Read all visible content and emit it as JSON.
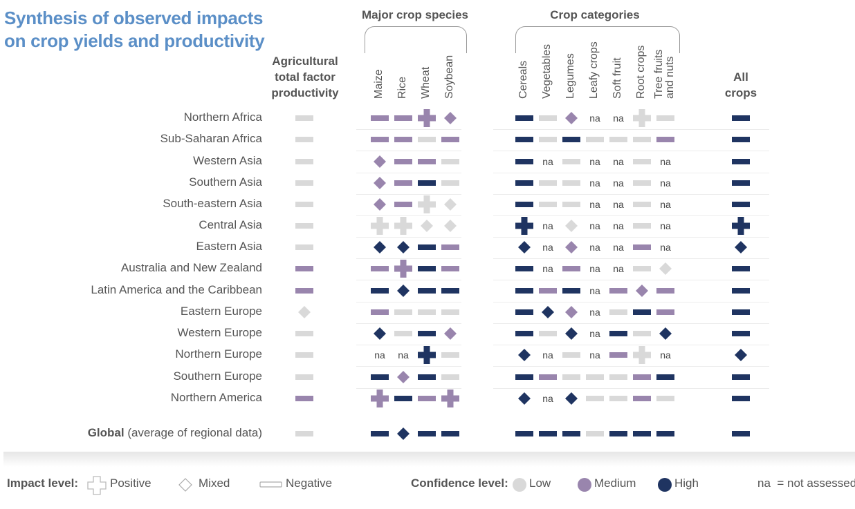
{
  "title_line1": "Synthesis of observed impacts",
  "title_line2": "on crop yields and productivity",
  "group_major": "Major crop species",
  "group_categories": "Crop categories",
  "col_agri": [
    "Agricultural",
    "total factor",
    "productivity"
  ],
  "col_all": [
    "All",
    "crops"
  ],
  "columns_major": [
    "Maize",
    "Rice",
    "Wheat",
    "Soybean"
  ],
  "columns_categories": [
    "Cereals",
    "Vegetables",
    "Legumes",
    "Leafy crops",
    "Soft fruit",
    "Root crops",
    "Tree fruits\nand nuts"
  ],
  "global_label_bold": "Global",
  "global_label_rest": "(average of regional data)",
  "legend": {
    "impact_label": "Impact level:",
    "positive": "Positive",
    "mixed": "Mixed",
    "negative": "Negative",
    "confidence_label": "Confidence level:",
    "low": "Low",
    "medium": "Medium",
    "high": "High",
    "na_key": "na",
    "na_text": "= not assessed"
  },
  "colors": {
    "low": "#d9d9d9",
    "medium": "#9985ad",
    "high": "#1f3461"
  },
  "chart_data": {
    "type": "table",
    "encoding": "symbol = impact (P positive, M mixed, N negative); color = confidence (L low, M medium, H high); na = not assessed",
    "columns": [
      "Agricultural total factor productivity",
      "Maize",
      "Rice",
      "Wheat",
      "Soybean",
      "Cereals",
      "Vegetables",
      "Legumes",
      "Leafy crops",
      "Soft fruit",
      "Root crops",
      "Tree fruits and nuts",
      "All crops"
    ],
    "rows": [
      {
        "region": "Northern Africa",
        "cells": [
          "NL",
          "NM",
          "NM",
          "PM",
          "MM",
          "NH",
          "NL",
          "MM",
          "na",
          "na",
          "PL",
          "NL",
          "NH"
        ]
      },
      {
        "region": "Sub-Saharan Africa",
        "cells": [
          "NL",
          "NM",
          "NM",
          "NL",
          "NM",
          "NH",
          "NL",
          "NH",
          "NL",
          "NL",
          "NL",
          "NM",
          "NH"
        ]
      },
      {
        "region": "Western Asia",
        "cells": [
          "NL",
          "MM",
          "NM",
          "NM",
          "NL",
          "NH",
          "na",
          "NL",
          "na",
          "na",
          "NL",
          "na",
          "NH"
        ]
      },
      {
        "region": "Southern Asia",
        "cells": [
          "NL",
          "MM",
          "NM",
          "NH",
          "NL",
          "NH",
          "NL",
          "NL",
          "na",
          "na",
          "NL",
          "na",
          "NH"
        ]
      },
      {
        "region": "South-eastern Asia",
        "cells": [
          "NL",
          "MM",
          "NM",
          "PL",
          "ML",
          "NH",
          "NL",
          "NL",
          "na",
          "na",
          "NL",
          "na",
          "NH"
        ]
      },
      {
        "region": "Central Asia",
        "cells": [
          "NL",
          "PL",
          "PL",
          "ML",
          "ML",
          "PH",
          "na",
          "ML",
          "na",
          "na",
          "NL",
          "na",
          "PH"
        ]
      },
      {
        "region": "Eastern Asia",
        "cells": [
          "NL",
          "MH",
          "MH",
          "NH",
          "NM",
          "MH",
          "na",
          "MM",
          "na",
          "na",
          "NM",
          "na",
          "MH"
        ]
      },
      {
        "region": "Australia and New Zealand",
        "cells": [
          "NM",
          "NM",
          "PM",
          "NH",
          "NM",
          "NH",
          "na",
          "NM",
          "na",
          "na",
          "NL",
          "ML",
          "NH"
        ]
      },
      {
        "region": "Latin America and the Caribbean",
        "cells": [
          "NM",
          "NH",
          "MH",
          "NH",
          "NH",
          "NH",
          "NM",
          "NH",
          "na",
          "NM",
          "MM",
          "NM",
          "NH"
        ]
      },
      {
        "region": "Eastern Europe",
        "cells": [
          "ML",
          "NM",
          "NL",
          "NL",
          "NL",
          "NH",
          "MH",
          "MM",
          "na",
          "NL",
          "NH",
          "NM",
          "NH"
        ]
      },
      {
        "region": "Western Europe",
        "cells": [
          "NL",
          "MH",
          "NL",
          "NH",
          "MM",
          "NH",
          "NL",
          "MH",
          "na",
          "NH",
          "NL",
          "MH",
          "NH"
        ]
      },
      {
        "region": "Northern Europe",
        "cells": [
          "NL",
          "na",
          "na",
          "PH",
          "NL",
          "MH",
          "na",
          "NL",
          "na",
          "NM",
          "PL",
          "na",
          "MH"
        ]
      },
      {
        "region": "Southern Europe",
        "cells": [
          "NL",
          "NH",
          "MM",
          "NH",
          "NL",
          "NH",
          "NM",
          "NL",
          "NL",
          "NL",
          "NM",
          "NH",
          "NH"
        ]
      },
      {
        "region": "Northern America",
        "cells": [
          "NM",
          "PM",
          "NH",
          "NM",
          "PM",
          "MH",
          "na",
          "MH",
          "NL",
          "NL",
          "NM",
          "NL",
          "NH"
        ]
      },
      {
        "region": "Global (average of regional data)",
        "cells": [
          "NL",
          "NH",
          "MH",
          "NH",
          "NH",
          "NH",
          "NH",
          "NH",
          "NL",
          "NH",
          "NH",
          "NH",
          "NH"
        ]
      }
    ]
  }
}
